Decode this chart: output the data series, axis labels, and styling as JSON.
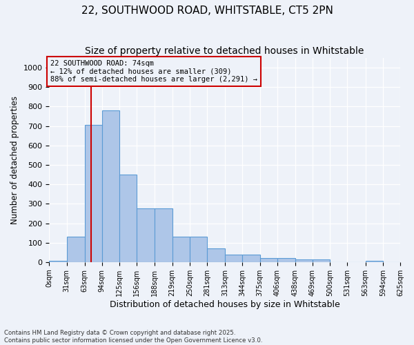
{
  "title1": "22, SOUTHWOOD ROAD, WHITSTABLE, CT5 2PN",
  "title2": "Size of property relative to detached houses in Whitstable",
  "xlabel": "Distribution of detached houses by size in Whitstable",
  "ylabel": "Number of detached properties",
  "footnote": "Contains HM Land Registry data © Crown copyright and database right 2025.\nContains public sector information licensed under the Open Government Licence v3.0.",
  "bin_edges": [
    0,
    31,
    63,
    94,
    125,
    156,
    188,
    219,
    250,
    281,
    313,
    344,
    375,
    406,
    438,
    469,
    500,
    531,
    563,
    594,
    625
  ],
  "bar_heights": [
    5,
    130,
    705,
    780,
    450,
    275,
    275,
    130,
    130,
    70,
    37,
    37,
    20,
    20,
    12,
    12,
    0,
    0,
    5,
    0
  ],
  "bar_color": "#aec6e8",
  "bar_edge_color": "#5b9bd5",
  "vline_x": 74,
  "vline_color": "#cc0000",
  "annotation_box_text": "22 SOUTHWOOD ROAD: 74sqm\n← 12% of detached houses are smaller (309)\n88% of semi-detached houses are larger (2,291) →",
  "ylim": [
    0,
    1050
  ],
  "xlim": [
    0,
    625
  ],
  "background_color": "#eef2f9",
  "grid_color": "#ffffff",
  "title1_fontsize": 11,
  "title2_fontsize": 10,
  "tick_label_fontsize": 7,
  "ylabel_fontsize": 8.5,
  "xlabel_fontsize": 9
}
